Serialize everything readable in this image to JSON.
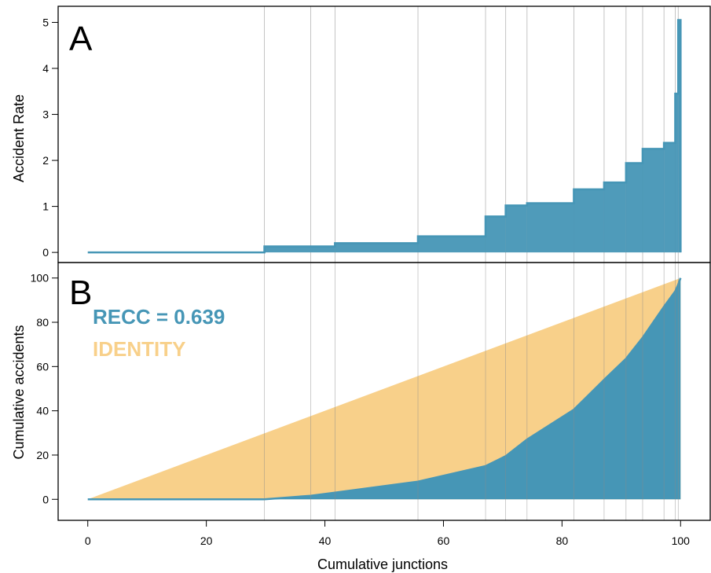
{
  "chart_data": [
    {
      "type": "area",
      "panel_label": "A",
      "xlabel": "",
      "ylabel": "Accident Rate",
      "xlim": [
        -5,
        105
      ],
      "ylim": [
        -0.22,
        5.35
      ],
      "yticks": [
        0,
        1,
        2,
        3,
        4,
        5
      ],
      "grid": "vertical lines at group boundaries",
      "color": "#4696B6",
      "boundaries": [
        29.8,
        37.6,
        41.7,
        55.7,
        67.1,
        70.5,
        74.1,
        82.0,
        87.1,
        90.8,
        93.6,
        97.2,
        99.1,
        99.6
      ],
      "steps": [
        {
          "x0": 0,
          "x1": 29.8,
          "rate": 0.0
        },
        {
          "x0": 29.8,
          "x1": 37.6,
          "rate": 0.13
        },
        {
          "x0": 37.6,
          "x1": 41.7,
          "rate": 0.13
        },
        {
          "x0": 41.7,
          "x1": 55.7,
          "rate": 0.2
        },
        {
          "x0": 55.7,
          "x1": 67.1,
          "rate": 0.35
        },
        {
          "x0": 67.1,
          "x1": 70.5,
          "rate": 0.78
        },
        {
          "x0": 70.5,
          "x1": 74.1,
          "rate": 1.02
        },
        {
          "x0": 74.1,
          "x1": 82.0,
          "rate": 1.07
        },
        {
          "x0": 82.0,
          "x1": 87.1,
          "rate": 1.37
        },
        {
          "x0": 87.1,
          "x1": 90.8,
          "rate": 1.52
        },
        {
          "x0": 90.8,
          "x1": 93.6,
          "rate": 1.94
        },
        {
          "x0": 93.6,
          "x1": 97.2,
          "rate": 2.25
        },
        {
          "x0": 97.2,
          "x1": 99.1,
          "rate": 2.38
        },
        {
          "x0": 99.1,
          "x1": 99.6,
          "rate": 3.45
        },
        {
          "x0": 99.6,
          "x1": 100.0,
          "rate": 5.05
        }
      ]
    },
    {
      "type": "area",
      "panel_label": "B",
      "xlabel": "Cumulative junctions",
      "ylabel": "Cumulative accidents",
      "xlim": [
        -5,
        105
      ],
      "ylim": [
        -9.5,
        107
      ],
      "xticks": [
        0,
        20,
        40,
        60,
        80,
        100
      ],
      "yticks": [
        0,
        20,
        40,
        60,
        80,
        100
      ],
      "series": [
        {
          "name": "IDENTITY",
          "color": "#F8D08A",
          "x": [
            0,
            100
          ],
          "y": [
            0,
            100
          ]
        },
        {
          "name": "RECC = 0.639",
          "color": "#4696B6",
          "x": [
            0,
            29.8,
            37.6,
            41.7,
            55.7,
            67.1,
            70.5,
            74.1,
            82.0,
            87.1,
            90.8,
            93.6,
            97.2,
            99.1,
            99.6,
            100.0
          ],
          "y": [
            0,
            0,
            1.6,
            3.0,
            8.0,
            15.0,
            19.5,
            27.0,
            40.5,
            54.0,
            63.5,
            73.0,
            87.0,
            94.0,
            97.0,
            100.0
          ]
        }
      ]
    }
  ]
}
